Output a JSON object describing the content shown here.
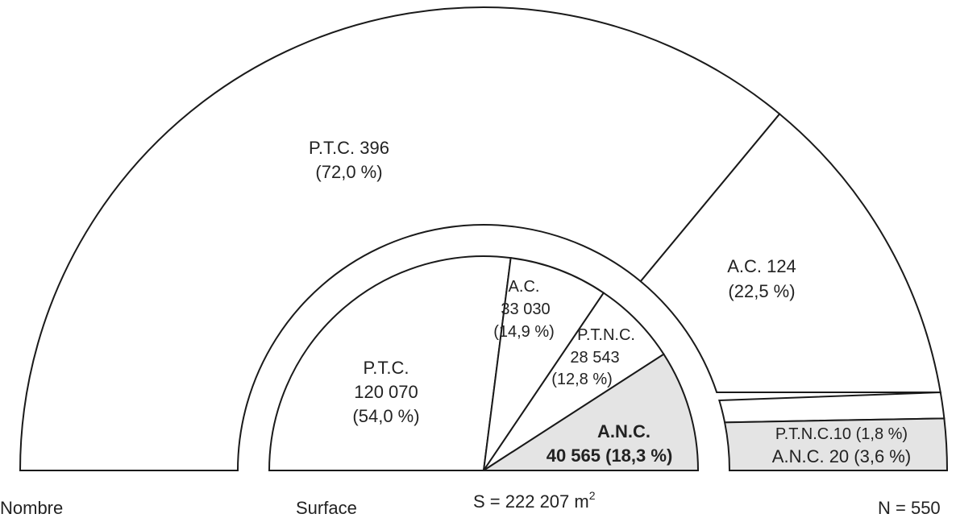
{
  "chart_data": [
    {
      "type": "pie",
      "variant": "half-donut",
      "title": "",
      "caption": "Nombre",
      "total_label": "N = 550",
      "slices": [
        {
          "key": "ptc",
          "name": "P.T.C.",
          "value": 396,
          "percent": "72,0 %",
          "label": "P.T.C. 396",
          "pct_label": "(72,0 %)"
        },
        {
          "key": "ac",
          "name": "A.C.",
          "value": 124,
          "percent": "22,5 %",
          "label": "A.C. 124",
          "pct_label": "(22,5 %)"
        },
        {
          "key": "ptnc",
          "name": "P.T.N.C.",
          "value": 10,
          "percent": "1,8 %",
          "label": "P.T.N.C.10 (1,8 %)"
        },
        {
          "key": "anc",
          "name": "A.N.C.",
          "value": 20,
          "percent": "3,6 %",
          "label": "A.N.C. 20 (3,6 %)",
          "shaded": true
        }
      ]
    },
    {
      "type": "pie",
      "variant": "half",
      "title": "",
      "caption": "Surface",
      "total_label": "S = 222 207 m",
      "total_unit_exp": "2",
      "slices": [
        {
          "key": "ptc",
          "name": "P.T.C.",
          "value": 120070,
          "percent": "54,0 %",
          "lines": [
            "P.T.C.",
            "120 070",
            "(54,0 %)"
          ]
        },
        {
          "key": "ac",
          "name": "A.C.",
          "value": 33030,
          "percent": "14,9 %",
          "lines": [
            "A.C.",
            "33 030",
            "(14,9 %)"
          ]
        },
        {
          "key": "ptnc",
          "name": "P.T.N.C.",
          "value": 28543,
          "percent": "12,8 %",
          "lines": [
            "P.T.N.C.",
            "28 543",
            "(12,8 %)"
          ]
        },
        {
          "key": "anc",
          "name": "A.N.C.",
          "value": 40565,
          "percent": "18,3 %",
          "lines": [
            "A.N.C.",
            "40 565 (18,3 %)"
          ],
          "shaded": true
        }
      ]
    }
  ],
  "colors": {
    "line": "#1a1a1a",
    "fill": "#ffffff",
    "shade": "#e4e4e4"
  }
}
